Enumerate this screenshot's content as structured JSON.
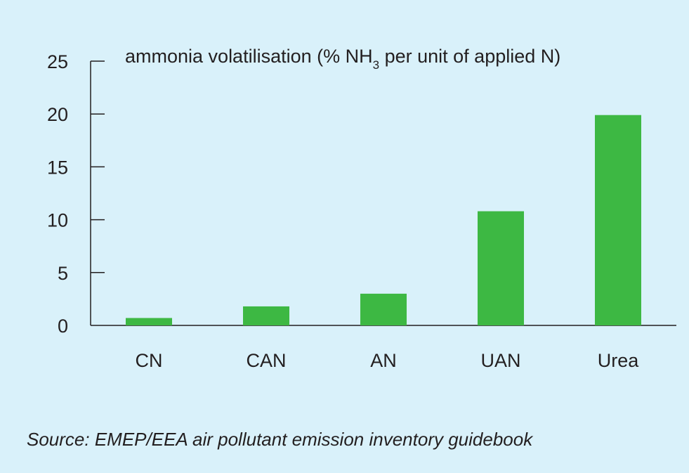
{
  "chart_data": {
    "type": "bar",
    "ylabel_parts": {
      "before": "ammonia volatilisation (% NH",
      "subscript": "3",
      "after": " per unit of applied N)"
    },
    "categories": [
      "CN",
      "CAN",
      "AN",
      "UAN",
      "Urea"
    ],
    "values": [
      0.7,
      1.8,
      3.0,
      10.8,
      19.9
    ],
    "ylim": [
      0,
      25
    ],
    "yticks": [
      0,
      5,
      10,
      15,
      20,
      25
    ],
    "ytick_labels": [
      "0",
      "5",
      "10",
      "15",
      "20",
      "25"
    ],
    "grid": false,
    "legend": false,
    "colors": {
      "bar": "#3db843",
      "axis": "#231f20",
      "background": "#d9f1fa"
    }
  },
  "source": "Source: EMEP/EEA air pollutant emission inventory guidebook"
}
